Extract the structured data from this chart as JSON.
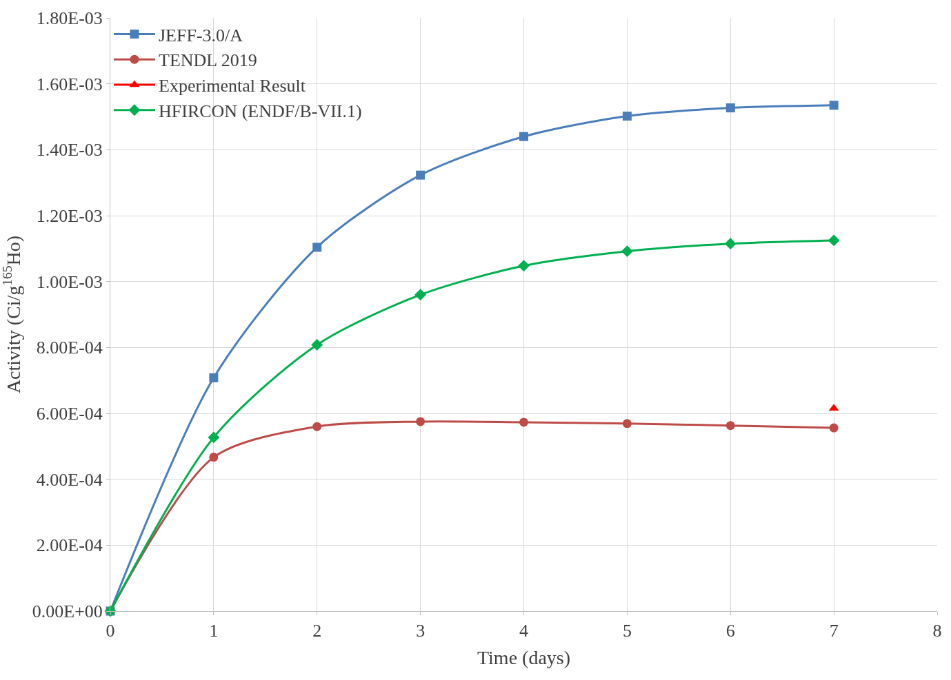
{
  "chart_data": {
    "type": "line",
    "xlabel": "Time (days)",
    "ylabel": "Activity (Ci/g$^{165}$Ho)",
    "x": [
      0,
      1,
      2,
      3,
      4,
      5,
      6,
      7
    ],
    "series": [
      {
        "name": "JEFF-3.0/A",
        "color": "#4a7ebb",
        "marker": "square",
        "values": [
          0,
          0.000708,
          0.001104,
          0.001323,
          0.00144,
          0.001502,
          0.001527,
          0.001535
        ]
      },
      {
        "name": "TENDL 2019",
        "color": "#be4b48",
        "marker": "circle",
        "values": [
          0,
          0.000467,
          0.00056,
          0.000575,
          0.000573,
          0.000569,
          0.000563,
          0.000556
        ]
      },
      {
        "name": "Experimental Result",
        "color": "#ff0000",
        "marker": "triangle",
        "x": [
          7
        ],
        "values": [
          0.000615
        ]
      },
      {
        "name": "HFIRCON (ENDF/B-VII.1)",
        "color": "#00b050",
        "marker": "diamond",
        "values": [
          0,
          0.000527,
          0.000808,
          0.00096,
          0.001048,
          0.001092,
          0.001115,
          0.001125
        ]
      }
    ],
    "xlim": [
      0,
      8
    ],
    "xticks": [
      0,
      1,
      2,
      3,
      4,
      5,
      6,
      7,
      8
    ],
    "ylim": [
      0,
      0.0018
    ],
    "yticks": [
      {
        "value": 0,
        "label": "0.00E+00"
      },
      {
        "value": 0.0002,
        "label": "2.00E-04"
      },
      {
        "value": 0.0004,
        "label": "4.00E-04"
      },
      {
        "value": 0.0006,
        "label": "6.00E-04"
      },
      {
        "value": 0.0008,
        "label": "8.00E-04"
      },
      {
        "value": 0.001,
        "label": "1.00E-03"
      },
      {
        "value": 0.0012,
        "label": "1.20E-03"
      },
      {
        "value": 0.0014,
        "label": "1.40E-03"
      },
      {
        "value": 0.0016,
        "label": "1.60E-03"
      },
      {
        "value": 0.0018,
        "label": "1.80E-03"
      }
    ],
    "grid": true,
    "legend": "top left",
    "line_style": "solid"
  }
}
